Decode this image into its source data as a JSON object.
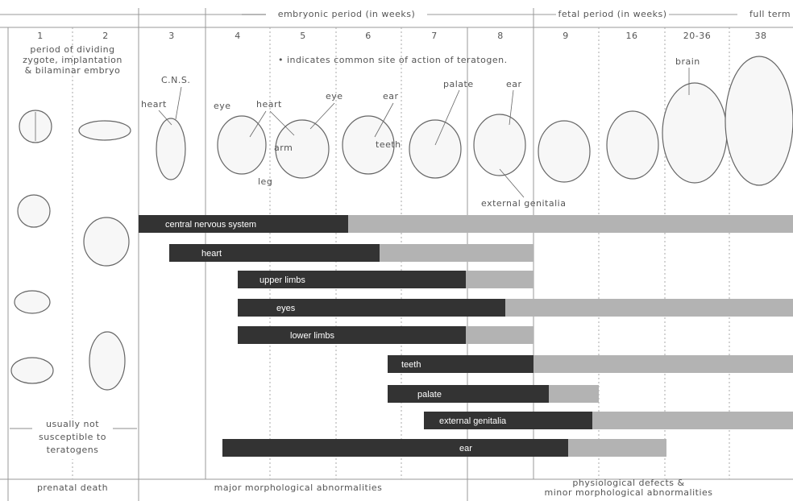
{
  "header": {
    "embryonic_period": "embryonic period (in weeks)",
    "fetal_period": "fetal period (in weeks)",
    "full_term": "full term"
  },
  "weeks": [
    "1",
    "2",
    "3",
    "4",
    "5",
    "6",
    "7",
    "8",
    "9",
    "16",
    "20-36",
    "38"
  ],
  "notes": {
    "dividing_zygote": [
      "period of dividing",
      "zygote, implantation",
      "& bilaminar embryo"
    ],
    "teratogen_site": "• indicates common site of action of teratogen.",
    "not_susceptible": [
      "usually not",
      "susceptible to",
      "teratogens"
    ]
  },
  "annotations": [
    "C.N.S.",
    "heart",
    "eye",
    "heart",
    "arm",
    "leg",
    "eye",
    "ear",
    "teeth",
    "palate",
    "ear",
    "brain",
    "external genitalia"
  ],
  "bars": [
    "central nervous system",
    "heart",
    "upper limbs",
    "eyes",
    "lower limbs",
    "teeth",
    "palate",
    "external genitalia",
    "ear"
  ],
  "footer": {
    "prenatal_death": "prenatal death",
    "major": "major morphological abnormalities",
    "minor": [
      "physiological defects &",
      "minor morphological abnormalities"
    ]
  }
}
